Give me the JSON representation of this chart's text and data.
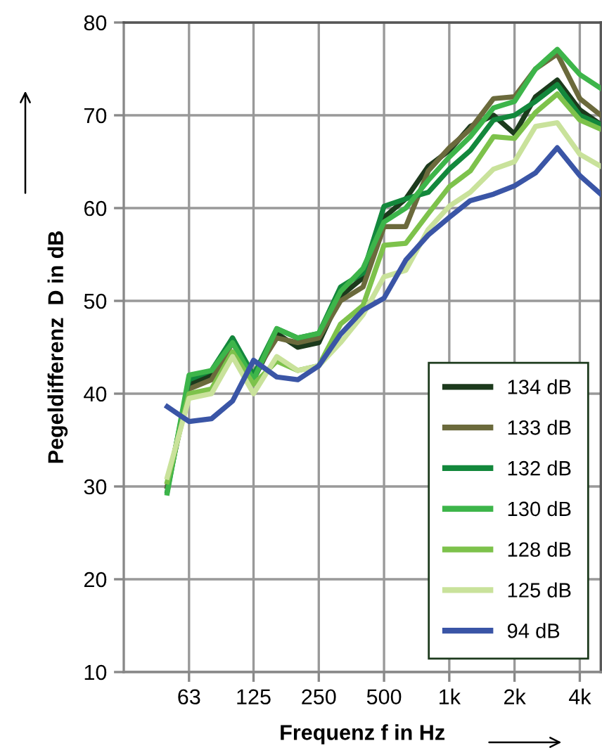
{
  "chart_data": {
    "type": "line",
    "xlabel": "Frequenz f in Hz",
    "ylabel": "Pegeldifferenz  D in dB",
    "log": "x",
    "grid": true,
    "legend": "bottom right",
    "marker": "none",
    "line_style": "solid",
    "x": [
      50,
      63,
      80,
      100,
      125,
      160,
      200,
      250,
      315,
      400,
      500,
      630,
      800,
      1000,
      1250,
      1600,
      2000,
      2500,
      3150,
      4000,
      5000
    ],
    "xlim": [
      31.5,
      5000
    ],
    "xticks": [
      {
        "value": 63,
        "label": "63"
      },
      {
        "value": 125,
        "label": "125"
      },
      {
        "value": 250,
        "label": "250"
      },
      {
        "value": 500,
        "label": "500"
      },
      {
        "value": 1000,
        "label": "1k"
      },
      {
        "value": 2000,
        "label": "2k"
      },
      {
        "value": 4000,
        "label": "4k"
      }
    ],
    "ylim": [
      10,
      80
    ],
    "yticks": [
      10,
      20,
      30,
      40,
      50,
      60,
      70,
      80
    ],
    "series": [
      {
        "name": "134 dB",
        "color": "#1c3a1c",
        "values": [
          30,
          41,
          42,
          46,
          41.5,
          46.5,
          45,
          45.5,
          50.5,
          52.5,
          59,
          61,
          64.5,
          66.2,
          68.8,
          70,
          68,
          72,
          73.8,
          70.6,
          69
        ]
      },
      {
        "name": "133 dB",
        "color": "#6b6a3c",
        "values": [
          30,
          40.5,
          41.5,
          45.5,
          42,
          46,
          45.5,
          46,
          50,
          51.5,
          58,
          58,
          64,
          66.5,
          68.5,
          71.8,
          72,
          75,
          76.6,
          71.8,
          70
        ]
      },
      {
        "name": "132 dB",
        "color": "#13883c",
        "values": [
          29.5,
          41.5,
          42.5,
          46,
          42,
          47,
          46,
          46.5,
          51.5,
          53,
          60.2,
          61,
          61.7,
          64.2,
          66.2,
          69.5,
          70,
          71.5,
          73.3,
          70,
          69
        ]
      },
      {
        "name": "130 dB",
        "color": "#3db54a",
        "values": [
          29.3,
          42,
          42.5,
          45.5,
          41.5,
          47,
          46,
          46.5,
          51,
          53.5,
          58.5,
          60,
          63,
          65.5,
          67.7,
          70.8,
          71.5,
          75,
          77.1,
          74.4,
          72.9
        ]
      },
      {
        "name": "128 dB",
        "color": "#7dc24b",
        "values": [
          30.5,
          40,
          40.5,
          44.5,
          41,
          43.5,
          42.5,
          43,
          47.5,
          49.5,
          56,
          56.2,
          59.4,
          62.3,
          64,
          67.7,
          67.5,
          70.3,
          72.3,
          69.5,
          68.5
        ]
      },
      {
        "name": "125 dB",
        "color": "#c9e29b",
        "values": [
          31,
          39.5,
          40,
          44,
          40,
          44,
          42.5,
          43,
          45.5,
          48.5,
          52.6,
          53.3,
          57.7,
          60.2,
          61.7,
          64.2,
          65,
          68.8,
          69.2,
          65.8,
          64.5
        ]
      },
      {
        "name": "94 dB",
        "color": "#3a55a6",
        "values": [
          38.6,
          37,
          37.3,
          39.2,
          43.6,
          41.8,
          41.5,
          43,
          46.4,
          49,
          50.3,
          54.4,
          57.1,
          59,
          60.8,
          61.5,
          62.4,
          63.8,
          66.5,
          63.5,
          61.5
        ]
      }
    ]
  }
}
